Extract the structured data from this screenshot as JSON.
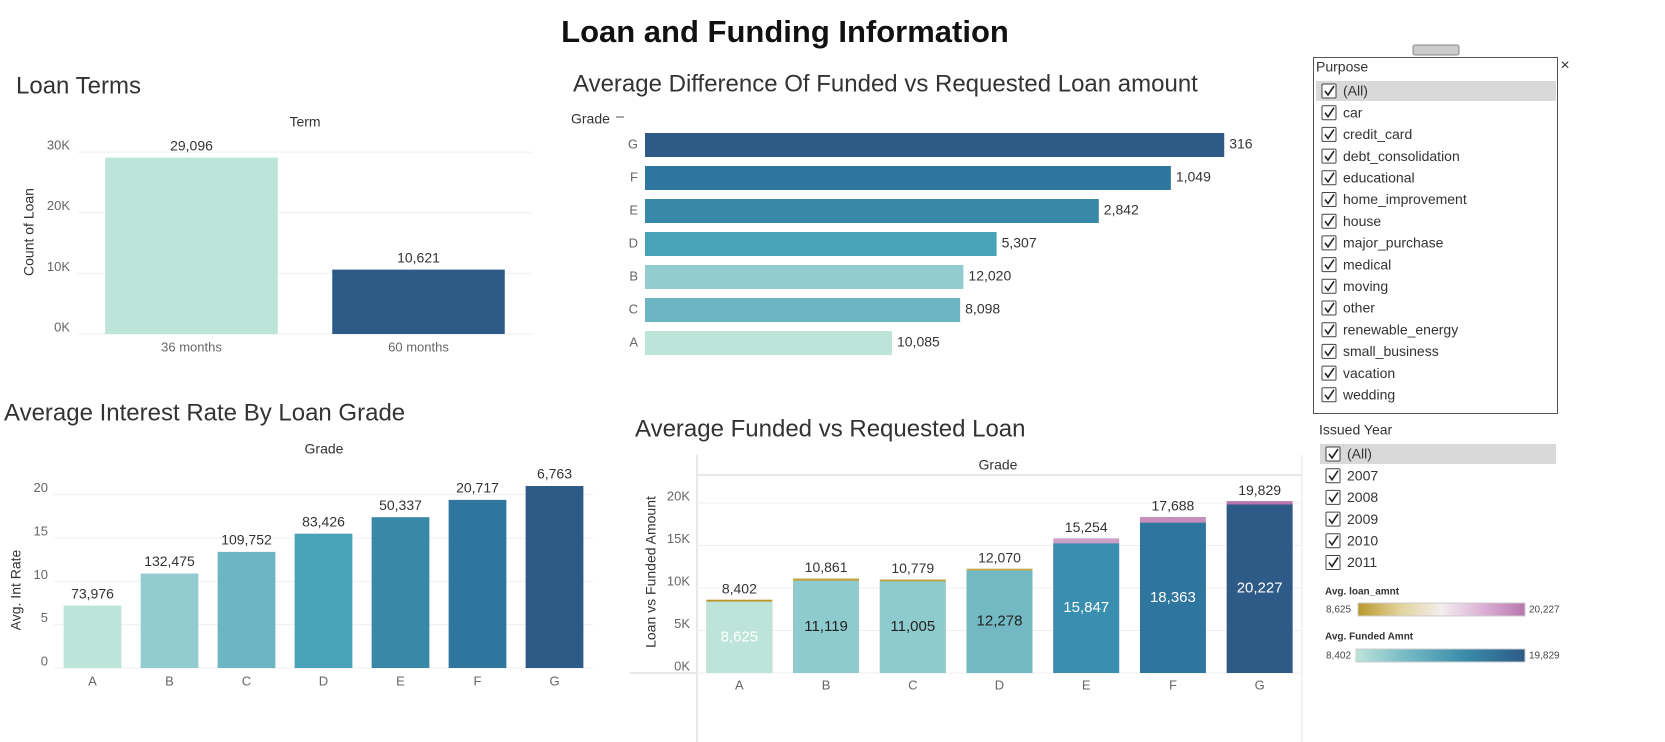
{
  "title": "Loan and Funding Information",
  "chart_data": [
    {
      "type": "bar",
      "title": "Loan Terms",
      "x_header": "Term",
      "y_label": "Count of Loan",
      "categories": [
        "36 months",
        "60 months"
      ],
      "values": [
        29096,
        10621
      ],
      "value_labels": [
        "29,096",
        "10,621"
      ],
      "colors": [
        "#bde4d9",
        "#2d5a87"
      ],
      "ylim": [
        0,
        32000
      ],
      "yticks": [
        {
          "value": 0,
          "label": "0K"
        },
        {
          "value": 10000,
          "label": "10K"
        },
        {
          "value": 20000,
          "label": "20K"
        },
        {
          "value": 30000,
          "label": "30K"
        }
      ],
      "grid": true
    },
    {
      "type": "hbar",
      "title": "Average Difference Of Funded vs Requested Loan amount",
      "y_header": "Grade",
      "categories": [
        "G",
        "F",
        "E",
        "D",
        "B",
        "C",
        "A"
      ],
      "values": [
        20227,
        18363,
        15847,
        12278,
        11119,
        11005,
        8625
      ],
      "bar_labels": [
        "316",
        "1,049",
        "2,842",
        "5,307",
        "12,020",
        "8,098",
        "10,085"
      ],
      "colors": [
        "#2d5a87",
        "#2f769e",
        "#3889a8",
        "#48a3b9",
        "#92cbd0",
        "#6db5c2",
        "#bde4d9"
      ],
      "xlim": [
        0,
        22000
      ]
    },
    {
      "type": "bar",
      "title": "Average Interest Rate By Loan Grade",
      "x_header": "Grade",
      "y_label": "Avg. Int Rate",
      "categories": [
        "A",
        "B",
        "C",
        "D",
        "E",
        "F",
        "G"
      ],
      "values": [
        7.2,
        10.9,
        13.4,
        15.5,
        17.4,
        19.4,
        21.0
      ],
      "bar_labels": [
        "73,976",
        "132,475",
        "109,752",
        "83,426",
        "50,337",
        "20,717",
        "6,763"
      ],
      "colors": [
        "#bde4d9",
        "#92cbd0",
        "#6db5c2",
        "#48a3b9",
        "#3889a8",
        "#2f769e",
        "#2d5a87"
      ],
      "ylim": [
        0,
        24
      ],
      "yticks": [
        0,
        5,
        10,
        15,
        20
      ],
      "grid": true
    },
    {
      "type": "overlap_bar",
      "title": "Average Funded vs Requested Loan",
      "x_header": "Grade",
      "y_label": "Loan vs Funded Amount",
      "categories": [
        "A",
        "B",
        "C",
        "D",
        "E",
        "F",
        "G"
      ],
      "series": [
        {
          "name": "Avg. loan_amnt",
          "values": [
            8625,
            11119,
            11005,
            12278,
            15847,
            18363,
            20227
          ],
          "value_labels": [
            "8,625",
            "11,119",
            "11,005",
            "12,278",
            "15,847",
            "18,363",
            "20,227"
          ],
          "colors": [
            "#b8972c",
            "#c2a23c",
            "#c2a23c",
            "#c9ab4a",
            "#cda0c8",
            "#c48fbd",
            "#b777ad"
          ],
          "legend_colors": [
            "#b8972c",
            "#e2d39a",
            "#f2eeee",
            "#dcb0d6",
            "#b777ad"
          ],
          "legend_min_label": "8,625",
          "legend_max_label": "20,227"
        },
        {
          "name": "Avg. Funded Amnt",
          "values": [
            8402,
            10861,
            10779,
            12070,
            15254,
            17688,
            19829
          ],
          "value_labels": [
            "8,402",
            "10,861",
            "10,779",
            "12,070",
            "15,254",
            "17,688",
            "19,829"
          ],
          "colors": [
            "#bde4d9",
            "#8ecbcf",
            "#8ecbcf",
            "#72b9c3",
            "#3a8fb0",
            "#2f769e",
            "#2d5a87"
          ],
          "legend_colors": [
            "#bde4d9",
            "#6db5c2",
            "#3889a8",
            "#2d5a87"
          ],
          "legend_min_label": "8,402",
          "legend_max_label": "19,829"
        }
      ],
      "ylim": [
        0,
        23300
      ],
      "yticks": [
        {
          "value": 0,
          "label": "0K"
        },
        {
          "value": 5000,
          "label": "5K"
        },
        {
          "value": 10000,
          "label": "10K"
        },
        {
          "value": 15000,
          "label": "15K"
        },
        {
          "value": 20000,
          "label": "20K"
        }
      ],
      "grid": true
    }
  ],
  "filters": [
    {
      "title": "Purpose",
      "items": [
        "(All)",
        "car",
        "credit_card",
        "debt_consolidation",
        "educational",
        "home_improvement",
        "house",
        "major_purchase",
        "medical",
        "moving",
        "other",
        "renewable_energy",
        "small_business",
        "vacation",
        "wedding"
      ]
    },
    {
      "title": "Issued Year",
      "items": [
        "(All)",
        "2007",
        "2008",
        "2009",
        "2010",
        "2011"
      ]
    }
  ]
}
